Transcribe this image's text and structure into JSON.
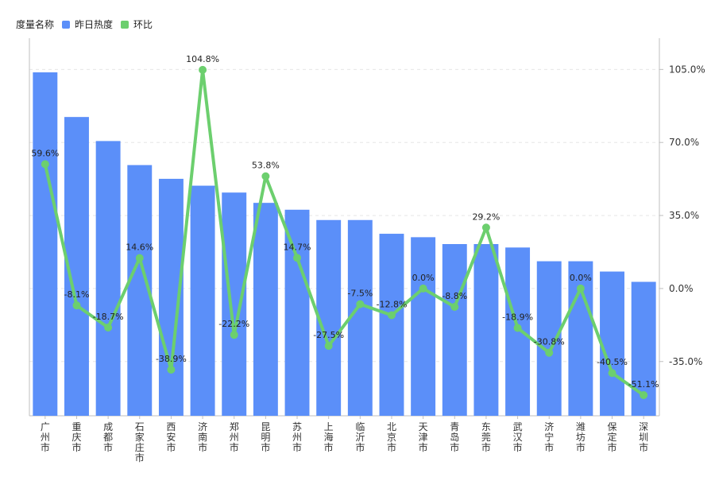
{
  "legend": {
    "title": "度量名称",
    "items": [
      {
        "label": "昨日热度",
        "color": "#5B8FF9"
      },
      {
        "label": "环比",
        "color": "#6CCF6E"
      }
    ]
  },
  "chart_data": {
    "type": "bar",
    "categories": [
      "广州市",
      "重庆市",
      "成都市",
      "石家庄市",
      "西安市",
      "济南市",
      "郑州市",
      "昆明市",
      "苏州市",
      "上海市",
      "临沂市",
      "北京市",
      "天津市",
      "青岛市",
      "东莞市",
      "武汉市",
      "济宁市",
      "潍坊市",
      "保定市",
      "深圳市"
    ],
    "series": [
      {
        "name": "昨日热度",
        "type": "bar",
        "axis": "left",
        "color": "#5B8FF9",
        "values": [
          100,
          87,
          80,
          73,
          69,
          67,
          65,
          62,
          60,
          57,
          57,
          53,
          52,
          50,
          50,
          49,
          45,
          45,
          42,
          39
        ]
      },
      {
        "name": "环比",
        "type": "line",
        "axis": "right",
        "color": "#6CCF6E",
        "values": [
          59.6,
          -8.1,
          -18.7,
          14.6,
          -38.9,
          104.8,
          -22.2,
          53.8,
          14.7,
          -27.5,
          -7.5,
          -12.8,
          0.0,
          -8.8,
          29.2,
          -18.9,
          -30.8,
          0.0,
          -40.5,
          -51.1
        ],
        "labels": [
          "59.6%",
          "-8.1%",
          "-18.7%",
          "14.6%",
          "-38.9%",
          "104.8%",
          "-22.2%",
          "53.8%",
          "14.7%",
          "-27.5%",
          "-7.5%",
          "-12.8%",
          "0.0%",
          "-8.8%",
          "29.2%",
          "-18.9%",
          "-30.8%",
          "0.0%",
          "-40.5%",
          "-51.1%"
        ]
      }
    ],
    "left_axis": {
      "range": [
        0,
        100
      ],
      "ticks_visible": false
    },
    "right_axis": {
      "range": [
        -61,
        120
      ],
      "ticks": [
        105,
        70,
        35,
        0,
        -35
      ],
      "tick_labels": [
        "105.0%",
        "70.0%",
        "35.0%",
        "0.0%",
        "-35.0%"
      ]
    },
    "grid": true,
    "legend_position": "top-left"
  }
}
